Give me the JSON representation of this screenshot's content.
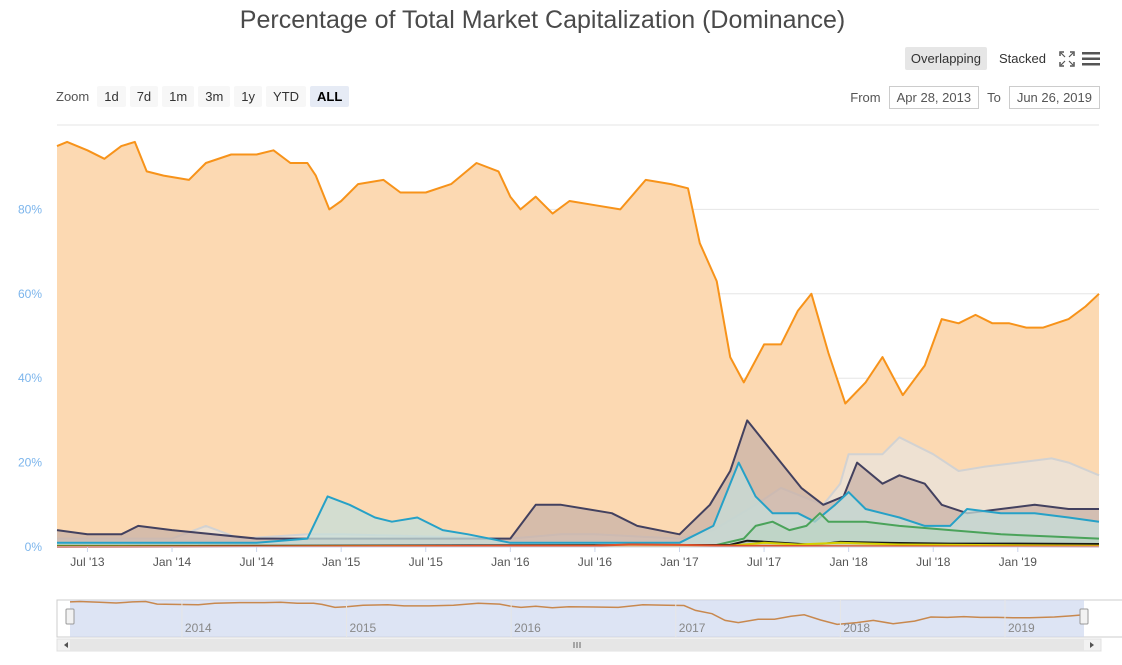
{
  "chart_data": {
    "type": "area",
    "title": "Percentage of Total Market Capitalization (Dominance)",
    "ylabel": "",
    "ylim": [
      0,
      100
    ],
    "yticks": [
      "0%",
      "20%",
      "40%",
      "60%",
      "80%"
    ],
    "x_ticks": [
      "Jul '13",
      "Jan '14",
      "Jul '14",
      "Jan '15",
      "Jul '15",
      "Jan '16",
      "Jul '16",
      "Jan '17",
      "Jul '17",
      "Jan '18",
      "Jul '18",
      "Jan '19"
    ],
    "x_tick_pos": [
      2013.5,
      2014.0,
      2014.5,
      2015.0,
      2015.5,
      2016.0,
      2016.5,
      2017.0,
      2017.5,
      2018.0,
      2018.5,
      2019.0
    ],
    "xlim": [
      2013.32,
      2019.48
    ],
    "series": [
      {
        "color": "#f7931a",
        "fill": "#fcd9b2",
        "points": [
          [
            2013.32,
            95
          ],
          [
            2013.38,
            96
          ],
          [
            2013.5,
            94
          ],
          [
            2013.6,
            92
          ],
          [
            2013.7,
            95
          ],
          [
            2013.78,
            96
          ],
          [
            2013.85,
            89
          ],
          [
            2013.95,
            88
          ],
          [
            2014.1,
            87
          ],
          [
            2014.2,
            91
          ],
          [
            2014.35,
            93
          ],
          [
            2014.5,
            93
          ],
          [
            2014.6,
            94
          ],
          [
            2014.7,
            91
          ],
          [
            2014.8,
            91
          ],
          [
            2014.85,
            88
          ],
          [
            2014.93,
            80
          ],
          [
            2015.0,
            82
          ],
          [
            2015.1,
            86
          ],
          [
            2015.25,
            87
          ],
          [
            2015.35,
            84
          ],
          [
            2015.5,
            84
          ],
          [
            2015.65,
            86
          ],
          [
            2015.8,
            91
          ],
          [
            2015.93,
            89
          ],
          [
            2016.0,
            83
          ],
          [
            2016.06,
            80
          ],
          [
            2016.15,
            83
          ],
          [
            2016.25,
            79
          ],
          [
            2016.35,
            82
          ],
          [
            2016.5,
            81
          ],
          [
            2016.65,
            80
          ],
          [
            2016.8,
            87
          ],
          [
            2016.95,
            86
          ],
          [
            2017.05,
            85
          ],
          [
            2017.12,
            72
          ],
          [
            2017.22,
            63
          ],
          [
            2017.3,
            45
          ],
          [
            2017.38,
            39
          ],
          [
            2017.5,
            48
          ],
          [
            2017.6,
            48
          ],
          [
            2017.7,
            56
          ],
          [
            2017.78,
            60
          ],
          [
            2017.88,
            46
          ],
          [
            2017.98,
            34
          ],
          [
            2018.1,
            39
          ],
          [
            2018.2,
            45
          ],
          [
            2018.32,
            36
          ],
          [
            2018.45,
            43
          ],
          [
            2018.55,
            54
          ],
          [
            2018.65,
            53
          ],
          [
            2018.75,
            55
          ],
          [
            2018.85,
            53
          ],
          [
            2018.95,
            53
          ],
          [
            2019.05,
            52
          ],
          [
            2019.15,
            52
          ],
          [
            2019.3,
            54
          ],
          [
            2019.4,
            57
          ],
          [
            2019.48,
            60
          ]
        ]
      },
      {
        "color": "#d2d2d2",
        "fill": "#e9e3dc",
        "points": [
          [
            2013.32,
            2
          ],
          [
            2014.0,
            2
          ],
          [
            2014.2,
            5
          ],
          [
            2014.4,
            2
          ],
          [
            2014.8,
            3
          ],
          [
            2015.0,
            3
          ],
          [
            2016.0,
            2
          ],
          [
            2016.3,
            3
          ],
          [
            2016.5,
            3
          ],
          [
            2017.0,
            2
          ],
          [
            2017.2,
            4
          ],
          [
            2017.45,
            10
          ],
          [
            2017.6,
            14
          ],
          [
            2017.85,
            10
          ],
          [
            2017.95,
            15
          ],
          [
            2018.0,
            22
          ],
          [
            2018.1,
            22
          ],
          [
            2018.2,
            22
          ],
          [
            2018.3,
            26
          ],
          [
            2018.5,
            22
          ],
          [
            2018.65,
            18
          ],
          [
            2018.8,
            19
          ],
          [
            2019.0,
            20
          ],
          [
            2019.2,
            21
          ],
          [
            2019.3,
            20
          ],
          [
            2019.48,
            17
          ]
        ]
      },
      {
        "color": "#43415f",
        "fill": "#c9b2a7",
        "points": [
          [
            2013.32,
            4
          ],
          [
            2013.5,
            3
          ],
          [
            2013.7,
            3
          ],
          [
            2013.8,
            5
          ],
          [
            2014.0,
            4
          ],
          [
            2014.5,
            2
          ],
          [
            2015.0,
            2
          ],
          [
            2015.5,
            2
          ],
          [
            2016.0,
            2
          ],
          [
            2016.15,
            10
          ],
          [
            2016.3,
            10
          ],
          [
            2016.45,
            9
          ],
          [
            2016.6,
            8
          ],
          [
            2016.75,
            5
          ],
          [
            2017.0,
            3
          ],
          [
            2017.18,
            10
          ],
          [
            2017.3,
            18
          ],
          [
            2017.4,
            30
          ],
          [
            2017.5,
            25
          ],
          [
            2017.6,
            20
          ],
          [
            2017.72,
            14
          ],
          [
            2017.85,
            10
          ],
          [
            2017.97,
            12
          ],
          [
            2018.0,
            15
          ],
          [
            2018.05,
            20
          ],
          [
            2018.2,
            15
          ],
          [
            2018.3,
            17
          ],
          [
            2018.45,
            15
          ],
          [
            2018.55,
            10
          ],
          [
            2018.7,
            8
          ],
          [
            2018.9,
            9
          ],
          [
            2019.1,
            10
          ],
          [
            2019.3,
            9
          ],
          [
            2019.48,
            9
          ]
        ]
      },
      {
        "color": "#26a1c7",
        "fill": "#c6ddd9",
        "points": [
          [
            2013.32,
            1
          ],
          [
            2013.8,
            1
          ],
          [
            2014.5,
            1
          ],
          [
            2014.8,
            2
          ],
          [
            2014.92,
            12
          ],
          [
            2015.05,
            10
          ],
          [
            2015.2,
            7
          ],
          [
            2015.3,
            6
          ],
          [
            2015.45,
            7
          ],
          [
            2015.6,
            4
          ],
          [
            2015.75,
            3
          ],
          [
            2016.0,
            1
          ],
          [
            2016.5,
            1
          ],
          [
            2017.0,
            1
          ],
          [
            2017.2,
            5
          ],
          [
            2017.3,
            15
          ],
          [
            2017.35,
            20
          ],
          [
            2017.45,
            12
          ],
          [
            2017.55,
            8
          ],
          [
            2017.7,
            8
          ],
          [
            2017.8,
            6
          ],
          [
            2017.92,
            10
          ],
          [
            2018.0,
            13
          ],
          [
            2018.1,
            9
          ],
          [
            2018.3,
            7
          ],
          [
            2018.45,
            5
          ],
          [
            2018.6,
            5
          ],
          [
            2018.7,
            9
          ],
          [
            2018.9,
            8
          ],
          [
            2019.1,
            8
          ],
          [
            2019.3,
            7
          ],
          [
            2019.48,
            6
          ]
        ]
      },
      {
        "color": "#4aa35a",
        "fill": "#bbd4c4",
        "points": [
          [
            2013.32,
            0.3
          ],
          [
            2017.2,
            0.3
          ],
          [
            2017.38,
            2
          ],
          [
            2017.45,
            5
          ],
          [
            2017.55,
            6
          ],
          [
            2017.65,
            4
          ],
          [
            2017.75,
            5
          ],
          [
            2017.83,
            8
          ],
          [
            2017.88,
            6
          ],
          [
            2017.95,
            6
          ],
          [
            2018.1,
            6
          ],
          [
            2018.3,
            5
          ],
          [
            2018.6,
            4
          ],
          [
            2018.9,
            3
          ],
          [
            2019.2,
            2.5
          ],
          [
            2019.48,
            2
          ]
        ]
      },
      {
        "color": "#1a1a1a",
        "fill": "#b7b7b7",
        "points": [
          [
            2013.32,
            0.2
          ],
          [
            2017.3,
            0.5
          ],
          [
            2017.4,
            1.5
          ],
          [
            2017.6,
            1
          ],
          [
            2017.8,
            0.5
          ],
          [
            2017.95,
            1.2
          ],
          [
            2018.2,
            1
          ],
          [
            2018.6,
            0.8
          ],
          [
            2019.0,
            0.8
          ],
          [
            2019.48,
            0.7
          ]
        ]
      },
      {
        "color": "#d4d000",
        "fill": "#d9d7a0",
        "points": [
          [
            2013.32,
            0.1
          ],
          [
            2017.3,
            0.3
          ],
          [
            2017.5,
            1
          ],
          [
            2017.7,
            0.6
          ],
          [
            2017.95,
            1
          ],
          [
            2018.3,
            0.6
          ],
          [
            2019.0,
            0.4
          ],
          [
            2019.48,
            0.3
          ]
        ]
      },
      {
        "color": "#e0522a",
        "fill": "#e5b59a",
        "points": [
          [
            2013.32,
            0
          ],
          [
            2016.5,
            0.3
          ],
          [
            2016.7,
            0.6
          ],
          [
            2017.0,
            0.5
          ],
          [
            2017.3,
            0.3
          ],
          [
            2018.0,
            0.2
          ],
          [
            2019.48,
            0.1
          ]
        ]
      }
    ],
    "navigator": {
      "labels": [
        "2014",
        "2015",
        "2016",
        "2017",
        "2018",
        "2019"
      ],
      "label_pos": [
        2014.0,
        2015.0,
        2016.0,
        2017.0,
        2018.0,
        2019.0
      ]
    }
  },
  "ui": {
    "layout_buttons": {
      "overlapping": "Overlapping",
      "stacked": "Stacked"
    },
    "zoom_label": "Zoom",
    "zoom_buttons": [
      "1d",
      "7d",
      "1m",
      "3m",
      "1y",
      "YTD",
      "ALL"
    ],
    "zoom_selected": "ALL",
    "from_label": "From",
    "from_value": "Apr 28, 2013",
    "to_label": "To",
    "to_value": "Jun 26, 2019",
    "fullscreen_icon": "fullscreen-icon",
    "menu_icon": "hamburger-menu-icon"
  }
}
